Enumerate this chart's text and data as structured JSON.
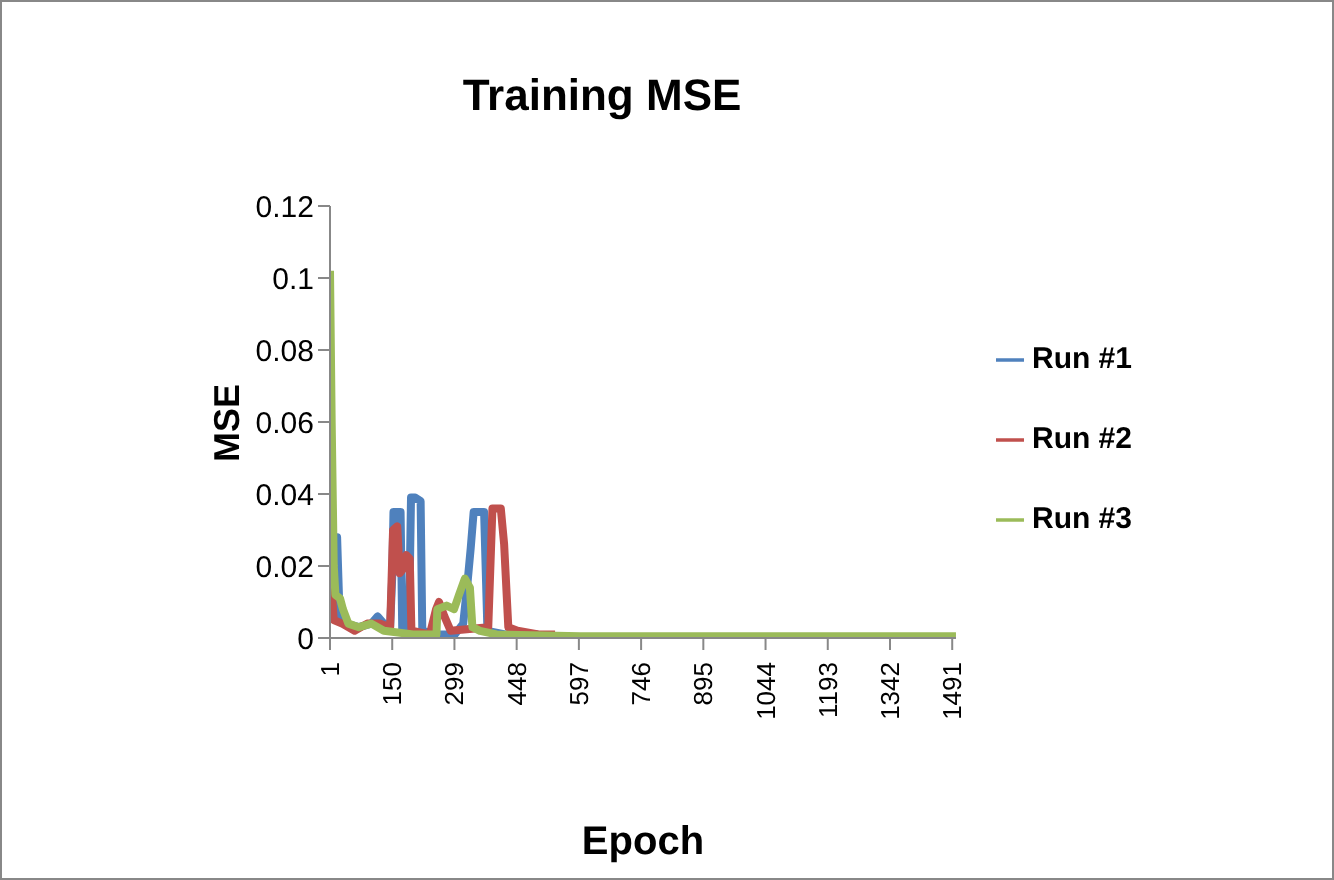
{
  "chart_data": {
    "type": "line",
    "title": "Training MSE",
    "xlabel": "Epoch",
    "ylabel": "MSE",
    "xlim": [
      1,
      1500
    ],
    "xticks": [
      1,
      150,
      299,
      448,
      597,
      746,
      895,
      1044,
      1193,
      1342,
      1491
    ],
    "ylim": [
      0,
      0.12
    ],
    "yticks": [
      0,
      0.02,
      0.04,
      0.06,
      0.08,
      0.1,
      0.12
    ],
    "grid": false,
    "legend": "right",
    "series": [
      {
        "name": "Run #1",
        "color": "#4f81bd",
        "x": [
          1,
          8,
          18,
          24,
          40,
          70,
          100,
          115,
          130,
          145,
          150,
          153,
          170,
          174,
          190,
          195,
          205,
          218,
          222,
          260,
          300,
          320,
          330,
          338,
          345,
          370,
          378,
          420,
          500
        ],
        "values": [
          0.03,
          0.01,
          0.028,
          0.006,
          0.004,
          0.003,
          0.004,
          0.006,
          0.004,
          0.003,
          0.017,
          0.035,
          0.035,
          0.002,
          0.002,
          0.039,
          0.039,
          0.038,
          0.002,
          0.001,
          0.001,
          0.004,
          0.015,
          0.025,
          0.035,
          0.035,
          0.002,
          0.001,
          0.001
        ]
      },
      {
        "name": "Run #2",
        "color": "#c0504d",
        "x": [
          1,
          10,
          30,
          60,
          90,
          120,
          145,
          152,
          162,
          168,
          175,
          184,
          192,
          196,
          240,
          255,
          262,
          275,
          290,
          380,
          390,
          410,
          418,
          428,
          450,
          500,
          540
        ],
        "values": [
          0.02,
          0.005,
          0.004,
          0.002,
          0.004,
          0.004,
          0.003,
          0.03,
          0.031,
          0.018,
          0.019,
          0.023,
          0.022,
          0.002,
          0.001,
          0.008,
          0.01,
          0.006,
          0.002,
          0.003,
          0.036,
          0.036,
          0.026,
          0.003,
          0.002,
          0.001,
          0.001
        ]
      },
      {
        "name": "Run #3",
        "color": "#9bbb59",
        "x": [
          1,
          5,
          10,
          14,
          25,
          32,
          45,
          70,
          100,
          130,
          200,
          256,
          258,
          280,
          298,
          310,
          324,
          336,
          342,
          360,
          400,
          600,
          1000,
          1500
        ],
        "values": [
          0.102,
          0.06,
          0.02,
          0.012,
          0.011,
          0.008,
          0.004,
          0.003,
          0.004,
          0.002,
          0.001,
          0.001,
          0.008,
          0.009,
          0.008,
          0.012,
          0.0165,
          0.014,
          0.003,
          0.002,
          0.001,
          0.0005,
          0.0005,
          0.0005
        ]
      }
    ]
  }
}
